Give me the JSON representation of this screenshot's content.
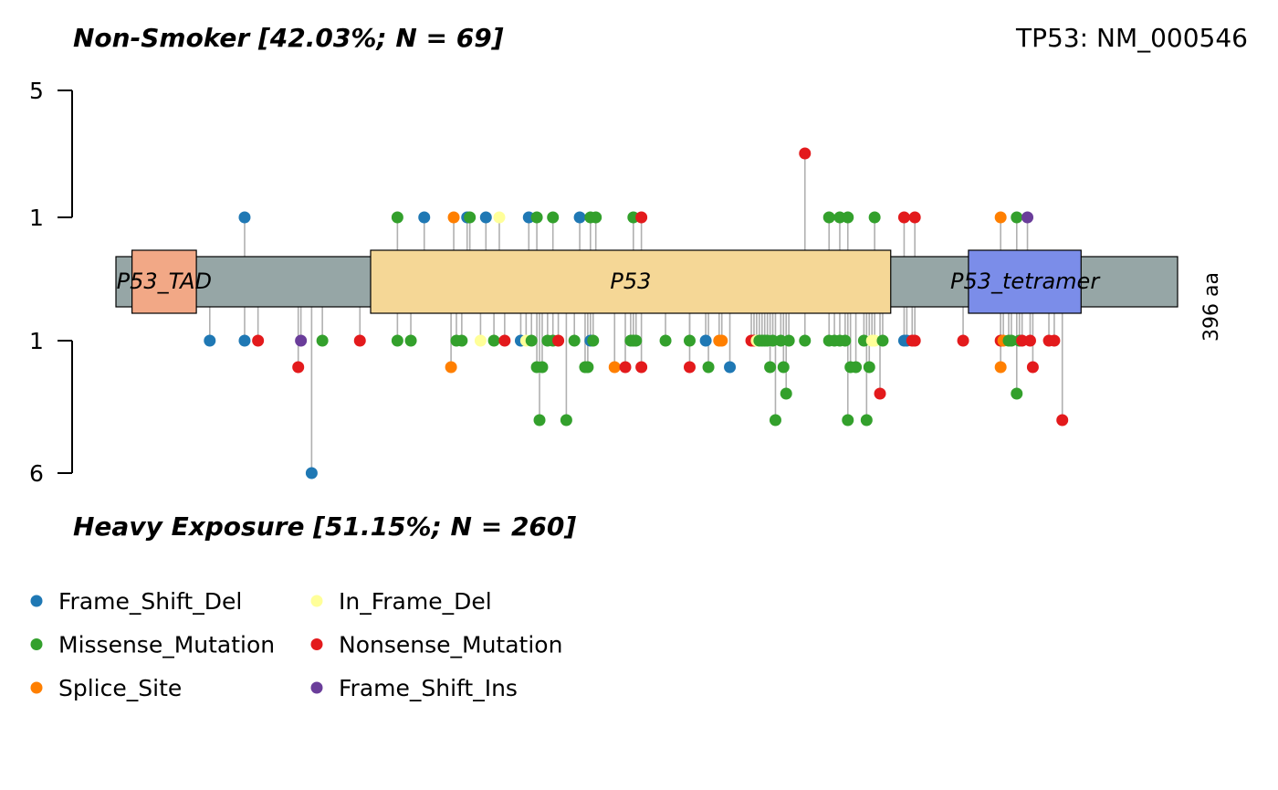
{
  "chart_data": {
    "type": "lollipop",
    "top_title": "Non-Smoker [42.03%; N = 69]",
    "bottom_title": "Heavy Exposure [51.15%; N = 260]",
    "gene_label": "TP53: NM_000546",
    "protein_length": 396,
    "length_label": "396 aa",
    "y_axis": {
      "top_ticks": [
        "5",
        "1"
      ],
      "bottom_ticks": [
        "1",
        "6"
      ]
    },
    "domains": [
      {
        "name": "P53_TAD",
        "start": 6,
        "end": 30,
        "color": "#F2A886"
      },
      {
        "name": "P53",
        "start": 95,
        "end": 289,
        "color": "#F5D796"
      },
      {
        "name": "P53_tetramer",
        "start": 318,
        "end": 360,
        "color": "#7B8DE9"
      }
    ],
    "backbone_color": "#96A6A6",
    "classes": {
      "Frame_Shift_Del": "#1F78B4",
      "In_Frame_Del": "#FFFF99",
      "Missense_Mutation": "#33A02C",
      "Nonsense_Mutation": "#E31A1C",
      "Splice_Site": "#FF7F00",
      "Frame_Shift_Ins": "#6A3D9A"
    },
    "legend": [
      {
        "label": "Frame_Shift_Del",
        "class": "Frame_Shift_Del"
      },
      {
        "label": "In_Frame_Del",
        "class": "In_Frame_Del"
      },
      {
        "label": "Missense_Mutation",
        "class": "Missense_Mutation"
      },
      {
        "label": "Nonsense_Mutation",
        "class": "Nonsense_Mutation"
      },
      {
        "label": "Splice_Site",
        "class": "Splice_Site"
      },
      {
        "label": "Frame_Shift_Ins",
        "class": "Frame_Shift_Ins"
      }
    ],
    "top_mutations": [
      {
        "pos": 48,
        "count": 1,
        "class": "Frame_Shift_Del"
      },
      {
        "pos": 105,
        "count": 1,
        "class": "Missense_Mutation"
      },
      {
        "pos": 115,
        "count": 1,
        "class": "Frame_Shift_Del"
      },
      {
        "pos": 126,
        "count": 1,
        "class": "Splice_Site"
      },
      {
        "pos": 131,
        "count": 1,
        "class": "Frame_Shift_Del"
      },
      {
        "pos": 132,
        "count": 1,
        "class": "Missense_Mutation"
      },
      {
        "pos": 138,
        "count": 1,
        "class": "Frame_Shift_Del"
      },
      {
        "pos": 143,
        "count": 1,
        "class": "In_Frame_Del"
      },
      {
        "pos": 154,
        "count": 1,
        "class": "Frame_Shift_Del"
      },
      {
        "pos": 157,
        "count": 1,
        "class": "Missense_Mutation"
      },
      {
        "pos": 163,
        "count": 1,
        "class": "Missense_Mutation"
      },
      {
        "pos": 173,
        "count": 1,
        "class": "Frame_Shift_Del"
      },
      {
        "pos": 177,
        "count": 1,
        "class": "Missense_Mutation"
      },
      {
        "pos": 179,
        "count": 1,
        "class": "Missense_Mutation"
      },
      {
        "pos": 193,
        "count": 1,
        "class": "Missense_Mutation"
      },
      {
        "pos": 196,
        "count": 1,
        "class": "Nonsense_Mutation"
      },
      {
        "pos": 257,
        "count": 3,
        "class": "Nonsense_Mutation"
      },
      {
        "pos": 266,
        "count": 1,
        "class": "Missense_Mutation"
      },
      {
        "pos": 270,
        "count": 1,
        "class": "Missense_Mutation"
      },
      {
        "pos": 273,
        "count": 1,
        "class": "Missense_Mutation"
      },
      {
        "pos": 283,
        "count": 1,
        "class": "Missense_Mutation"
      },
      {
        "pos": 294,
        "count": 1,
        "class": "Nonsense_Mutation"
      },
      {
        "pos": 298,
        "count": 1,
        "class": "Nonsense_Mutation"
      },
      {
        "pos": 330,
        "count": 1,
        "class": "Splice_Site"
      },
      {
        "pos": 336,
        "count": 1,
        "class": "Missense_Mutation"
      },
      {
        "pos": 340,
        "count": 1,
        "class": "Frame_Shift_Ins"
      }
    ],
    "bottom_mutations": [
      {
        "pos": 35,
        "count": 1,
        "class": "Frame_Shift_Del"
      },
      {
        "pos": 48,
        "count": 1,
        "class": "Frame_Shift_Del"
      },
      {
        "pos": 53,
        "count": 1,
        "class": "Nonsense_Mutation"
      },
      {
        "pos": 68,
        "count": 2,
        "class": "Nonsense_Mutation"
      },
      {
        "pos": 69,
        "count": 1,
        "class": "Frame_Shift_Ins"
      },
      {
        "pos": 73,
        "count": 6,
        "class": "Frame_Shift_Del"
      },
      {
        "pos": 77,
        "count": 1,
        "class": "Missense_Mutation"
      },
      {
        "pos": 91,
        "count": 1,
        "class": "Nonsense_Mutation"
      },
      {
        "pos": 105,
        "count": 1,
        "class": "Missense_Mutation"
      },
      {
        "pos": 110,
        "count": 1,
        "class": "Missense_Mutation"
      },
      {
        "pos": 125,
        "count": 2,
        "class": "Splice_Site"
      },
      {
        "pos": 127,
        "count": 1,
        "class": "Missense_Mutation"
      },
      {
        "pos": 129,
        "count": 1,
        "class": "Missense_Mutation"
      },
      {
        "pos": 136,
        "count": 1,
        "class": "In_Frame_Del"
      },
      {
        "pos": 141,
        "count": 1,
        "class": "Missense_Mutation"
      },
      {
        "pos": 145,
        "count": 1,
        "class": "Nonsense_Mutation"
      },
      {
        "pos": 151,
        "count": 1,
        "class": "Frame_Shift_Del"
      },
      {
        "pos": 153,
        "count": 1,
        "class": "In_Frame_Del"
      },
      {
        "pos": 155,
        "count": 1,
        "class": "Missense_Mutation"
      },
      {
        "pos": 157,
        "count": 2,
        "class": "Missense_Mutation"
      },
      {
        "pos": 158,
        "count": 4,
        "class": "Missense_Mutation"
      },
      {
        "pos": 159,
        "count": 2,
        "class": "Missense_Mutation"
      },
      {
        "pos": 161,
        "count": 1,
        "class": "Missense_Mutation"
      },
      {
        "pos": 163,
        "count": 1,
        "class": "Missense_Mutation"
      },
      {
        "pos": 165,
        "count": 1,
        "class": "Nonsense_Mutation"
      },
      {
        "pos": 168,
        "count": 4,
        "class": "Missense_Mutation"
      },
      {
        "pos": 171,
        "count": 1,
        "class": "Missense_Mutation"
      },
      {
        "pos": 175,
        "count": 2,
        "class": "Missense_Mutation"
      },
      {
        "pos": 176,
        "count": 2,
        "class": "Missense_Mutation"
      },
      {
        "pos": 177,
        "count": 1,
        "class": "Frame_Shift_Del"
      },
      {
        "pos": 178,
        "count": 1,
        "class": "Missense_Mutation"
      },
      {
        "pos": 186,
        "count": 2,
        "class": "Splice_Site"
      },
      {
        "pos": 190,
        "count": 2,
        "class": "Nonsense_Mutation"
      },
      {
        "pos": 192,
        "count": 1,
        "class": "Missense_Mutation"
      },
      {
        "pos": 193,
        "count": 1,
        "class": "Missense_Mutation"
      },
      {
        "pos": 194,
        "count": 1,
        "class": "Missense_Mutation"
      },
      {
        "pos": 196,
        "count": 2,
        "class": "Nonsense_Mutation"
      },
      {
        "pos": 205,
        "count": 1,
        "class": "Missense_Mutation"
      },
      {
        "pos": 214,
        "count": 2,
        "class": "Nonsense_Mutation"
      },
      {
        "pos": 214,
        "count": 1,
        "class": "Missense_Mutation"
      },
      {
        "pos": 220,
        "count": 1,
        "class": "Frame_Shift_Del"
      },
      {
        "pos": 221,
        "count": 2,
        "class": "Missense_Mutation"
      },
      {
        "pos": 225,
        "count": 1,
        "class": "Splice_Site"
      },
      {
        "pos": 226,
        "count": 1,
        "class": "Splice_Site"
      },
      {
        "pos": 229,
        "count": 2,
        "class": "Frame_Shift_Del"
      },
      {
        "pos": 237,
        "count": 1,
        "class": "Nonsense_Mutation"
      },
      {
        "pos": 238,
        "count": 1,
        "class": "Nonsense_Mutation"
      },
      {
        "pos": 239,
        "count": 1,
        "class": "In_Frame_Del"
      },
      {
        "pos": 240,
        "count": 1,
        "class": "Missense_Mutation"
      },
      {
        "pos": 241,
        "count": 1,
        "class": "Missense_Mutation"
      },
      {
        "pos": 242,
        "count": 1,
        "class": "Missense_Mutation"
      },
      {
        "pos": 243,
        "count": 1,
        "class": "Missense_Mutation"
      },
      {
        "pos": 244,
        "count": 2,
        "class": "Missense_Mutation"
      },
      {
        "pos": 245,
        "count": 1,
        "class": "Missense_Mutation"
      },
      {
        "pos": 246,
        "count": 4,
        "class": "Missense_Mutation"
      },
      {
        "pos": 248,
        "count": 1,
        "class": "Missense_Mutation"
      },
      {
        "pos": 249,
        "count": 2,
        "class": "Missense_Mutation"
      },
      {
        "pos": 250,
        "count": 3,
        "class": "Missense_Mutation"
      },
      {
        "pos": 251,
        "count": 1,
        "class": "Missense_Mutation"
      },
      {
        "pos": 257,
        "count": 1,
        "class": "Missense_Mutation"
      },
      {
        "pos": 266,
        "count": 1,
        "class": "Missense_Mutation"
      },
      {
        "pos": 268,
        "count": 1,
        "class": "Missense_Mutation"
      },
      {
        "pos": 270,
        "count": 1,
        "class": "Missense_Mutation"
      },
      {
        "pos": 272,
        "count": 1,
        "class": "Missense_Mutation"
      },
      {
        "pos": 273,
        "count": 4,
        "class": "Missense_Mutation"
      },
      {
        "pos": 274,
        "count": 2,
        "class": "Missense_Mutation"
      },
      {
        "pos": 276,
        "count": 2,
        "class": "Missense_Mutation"
      },
      {
        "pos": 279,
        "count": 1,
        "class": "Missense_Mutation"
      },
      {
        "pos": 280,
        "count": 4,
        "class": "Missense_Mutation"
      },
      {
        "pos": 281,
        "count": 2,
        "class": "Missense_Mutation"
      },
      {
        "pos": 282,
        "count": 1,
        "class": "In_Frame_Del"
      },
      {
        "pos": 283,
        "count": 1,
        "class": "In_Frame_Del"
      },
      {
        "pos": 285,
        "count": 3,
        "class": "Nonsense_Mutation"
      },
      {
        "pos": 286,
        "count": 1,
        "class": "Missense_Mutation"
      },
      {
        "pos": 294,
        "count": 1,
        "class": "Frame_Shift_Del"
      },
      {
        "pos": 295,
        "count": 1,
        "class": "Frame_Shift_Del"
      },
      {
        "pos": 297,
        "count": 1,
        "class": "Nonsense_Mutation"
      },
      {
        "pos": 298,
        "count": 1,
        "class": "Nonsense_Mutation"
      },
      {
        "pos": 316,
        "count": 1,
        "class": "Nonsense_Mutation"
      },
      {
        "pos": 330,
        "count": 1,
        "class": "Nonsense_Mutation"
      },
      {
        "pos": 330,
        "count": 2,
        "class": "Splice_Site"
      },
      {
        "pos": 331,
        "count": 1,
        "class": "Splice_Site"
      },
      {
        "pos": 333,
        "count": 1,
        "class": "Missense_Mutation"
      },
      {
        "pos": 334,
        "count": 1,
        "class": "Missense_Mutation"
      },
      {
        "pos": 336,
        "count": 3,
        "class": "Missense_Mutation"
      },
      {
        "pos": 337,
        "count": 1,
        "class": "Missense_Mutation"
      },
      {
        "pos": 338,
        "count": 1,
        "class": "Nonsense_Mutation"
      },
      {
        "pos": 341,
        "count": 1,
        "class": "Nonsense_Mutation"
      },
      {
        "pos": 342,
        "count": 2,
        "class": "Nonsense_Mutation"
      },
      {
        "pos": 348,
        "count": 1,
        "class": "Nonsense_Mutation"
      },
      {
        "pos": 350,
        "count": 1,
        "class": "Nonsense_Mutation"
      },
      {
        "pos": 353,
        "count": 4,
        "class": "Nonsense_Mutation"
      }
    ]
  }
}
